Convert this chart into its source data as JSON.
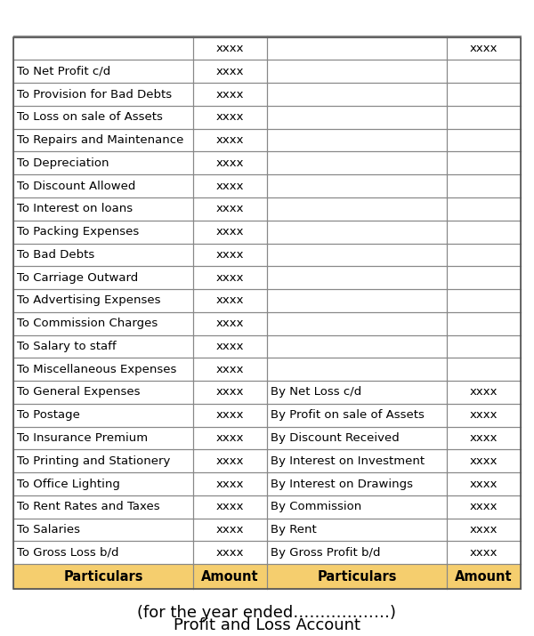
{
  "title_line1": "Profit and Loss Account",
  "title_line2": "(for the year ended………………)",
  "header_bg": "#F5DEB3",
  "header_text_color": "#000000",
  "cell_bg_white": "#FFFFFF",
  "cell_bg_alt": "#FFFFFF",
  "border_color": "#999999",
  "header_cols": [
    "Particulars",
    "Amount",
    "Particulars",
    "Amount"
  ],
  "left_rows": [
    [
      "To Gross Loss b/d",
      "xxxx"
    ],
    [
      "To Salaries",
      "xxxx"
    ],
    [
      "To Rent Rates and Taxes",
      "xxxx"
    ],
    [
      "To Office Lighting",
      "xxxx"
    ],
    [
      "To Printing and Stationery",
      "xxxx"
    ],
    [
      "To Insurance Premium",
      "xxxx"
    ],
    [
      "To Postage",
      "xxxx"
    ],
    [
      "To General Expenses",
      "xxxx"
    ],
    [
      "To Miscellaneous Expenses",
      "xxxx"
    ],
    [
      "To Salary to staff",
      "xxxx"
    ],
    [
      "To Commission Charges",
      "xxxx"
    ],
    [
      "To Advertising Expenses",
      "xxxx"
    ],
    [
      "To Carriage Outward",
      "xxxx"
    ],
    [
      "To Bad Debts",
      "xxxx"
    ],
    [
      "To Packing Expenses",
      "xxxx"
    ],
    [
      "To Interest on loans",
      "xxxx"
    ],
    [
      "To Discount Allowed",
      "xxxx"
    ],
    [
      "To Depreciation",
      "xxxx"
    ],
    [
      "To Repairs and Maintenance",
      "xxxx"
    ],
    [
      "To Loss on sale of Assets",
      "xxxx"
    ],
    [
      "To Provision for Bad Debts",
      "xxxx"
    ],
    [
      "To Net Profit c/d",
      "xxxx"
    ],
    [
      "",
      "xxxx"
    ]
  ],
  "right_rows": [
    [
      "By Gross Profit b/d",
      "xxxx"
    ],
    [
      "By Rent",
      "xxxx"
    ],
    [
      "By Commission",
      "xxxx"
    ],
    [
      "By Interest on Drawings",
      "xxxx"
    ],
    [
      "By Interest on Investment",
      "xxxx"
    ],
    [
      "By Discount Received",
      "xxxx"
    ],
    [
      "By Profit on sale of Assets",
      "xxxx"
    ],
    [
      "By Net Loss c/d",
      "xxxx"
    ],
    [
      "",
      ""
    ],
    [
      "",
      ""
    ],
    [
      "",
      ""
    ],
    [
      "",
      ""
    ],
    [
      "",
      ""
    ],
    [
      "",
      ""
    ],
    [
      "",
      ""
    ],
    [
      "",
      ""
    ],
    [
      "",
      ""
    ],
    [
      "",
      ""
    ],
    [
      "",
      ""
    ],
    [
      "",
      ""
    ],
    [
      "",
      ""
    ],
    [
      "",
      ""
    ],
    [
      "",
      "xxxx"
    ]
  ],
  "title_fontsize": 13,
  "header_fontsize": 10.5,
  "cell_fontsize": 9.5,
  "fig_width": 6.0,
  "fig_height": 7.15
}
